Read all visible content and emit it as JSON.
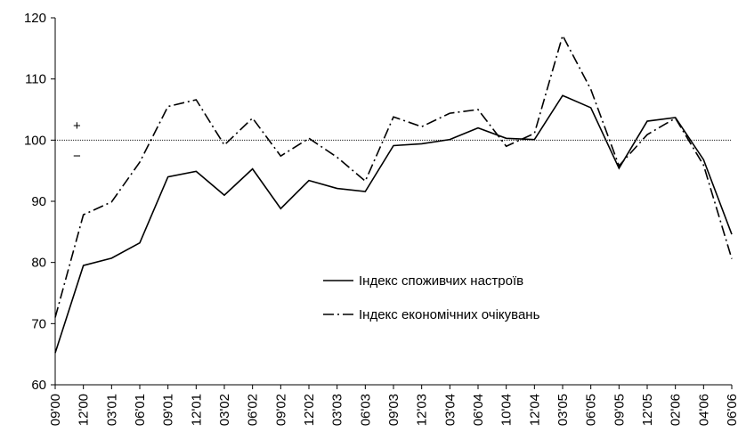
{
  "chart_data": {
    "type": "line",
    "categories": [
      "09'00",
      "12'00",
      "03'01",
      "06'01",
      "09'01",
      "12'01",
      "03'02",
      "06'02",
      "09'02",
      "12'02",
      "03'03",
      "06'03",
      "09'03",
      "12'03",
      "03'04",
      "06'04",
      "10'04",
      "12'04",
      "03'05",
      "06'05",
      "09'05",
      "12'05",
      "02'06",
      "04'06",
      "06'06"
    ],
    "series": [
      {
        "name": "Індекс споживчих настроїв",
        "color": "#000000",
        "dash": "solid",
        "values": [
          65.2,
          79.5,
          80.7,
          83.2,
          94.0,
          94.9,
          91.0,
          95.3,
          88.8,
          93.4,
          92.1,
          91.6,
          99.1,
          99.4,
          100.1,
          102.0,
          100.3,
          100.1,
          107.3,
          105.3,
          95.4,
          103.1,
          103.7,
          96.8,
          84.6
        ]
      },
      {
        "name": "Індекс економічних очікувань",
        "color": "#000000",
        "dash": "dashdot",
        "values": [
          71.0,
          87.8,
          89.9,
          96.4,
          105.5,
          106.6,
          99.2,
          103.6,
          97.4,
          100.3,
          97.2,
          93.3,
          103.8,
          102.2,
          104.4,
          105.0,
          99.0,
          101.1,
          117.1,
          108.3,
          95.8,
          100.9,
          103.6,
          95.9,
          80.6
        ]
      }
    ],
    "ylim": [
      60,
      120
    ],
    "yticks": [
      60,
      70,
      80,
      90,
      100,
      110,
      120
    ],
    "reference_line": 100,
    "annotations": [
      "+",
      "−"
    ],
    "grid": false
  }
}
